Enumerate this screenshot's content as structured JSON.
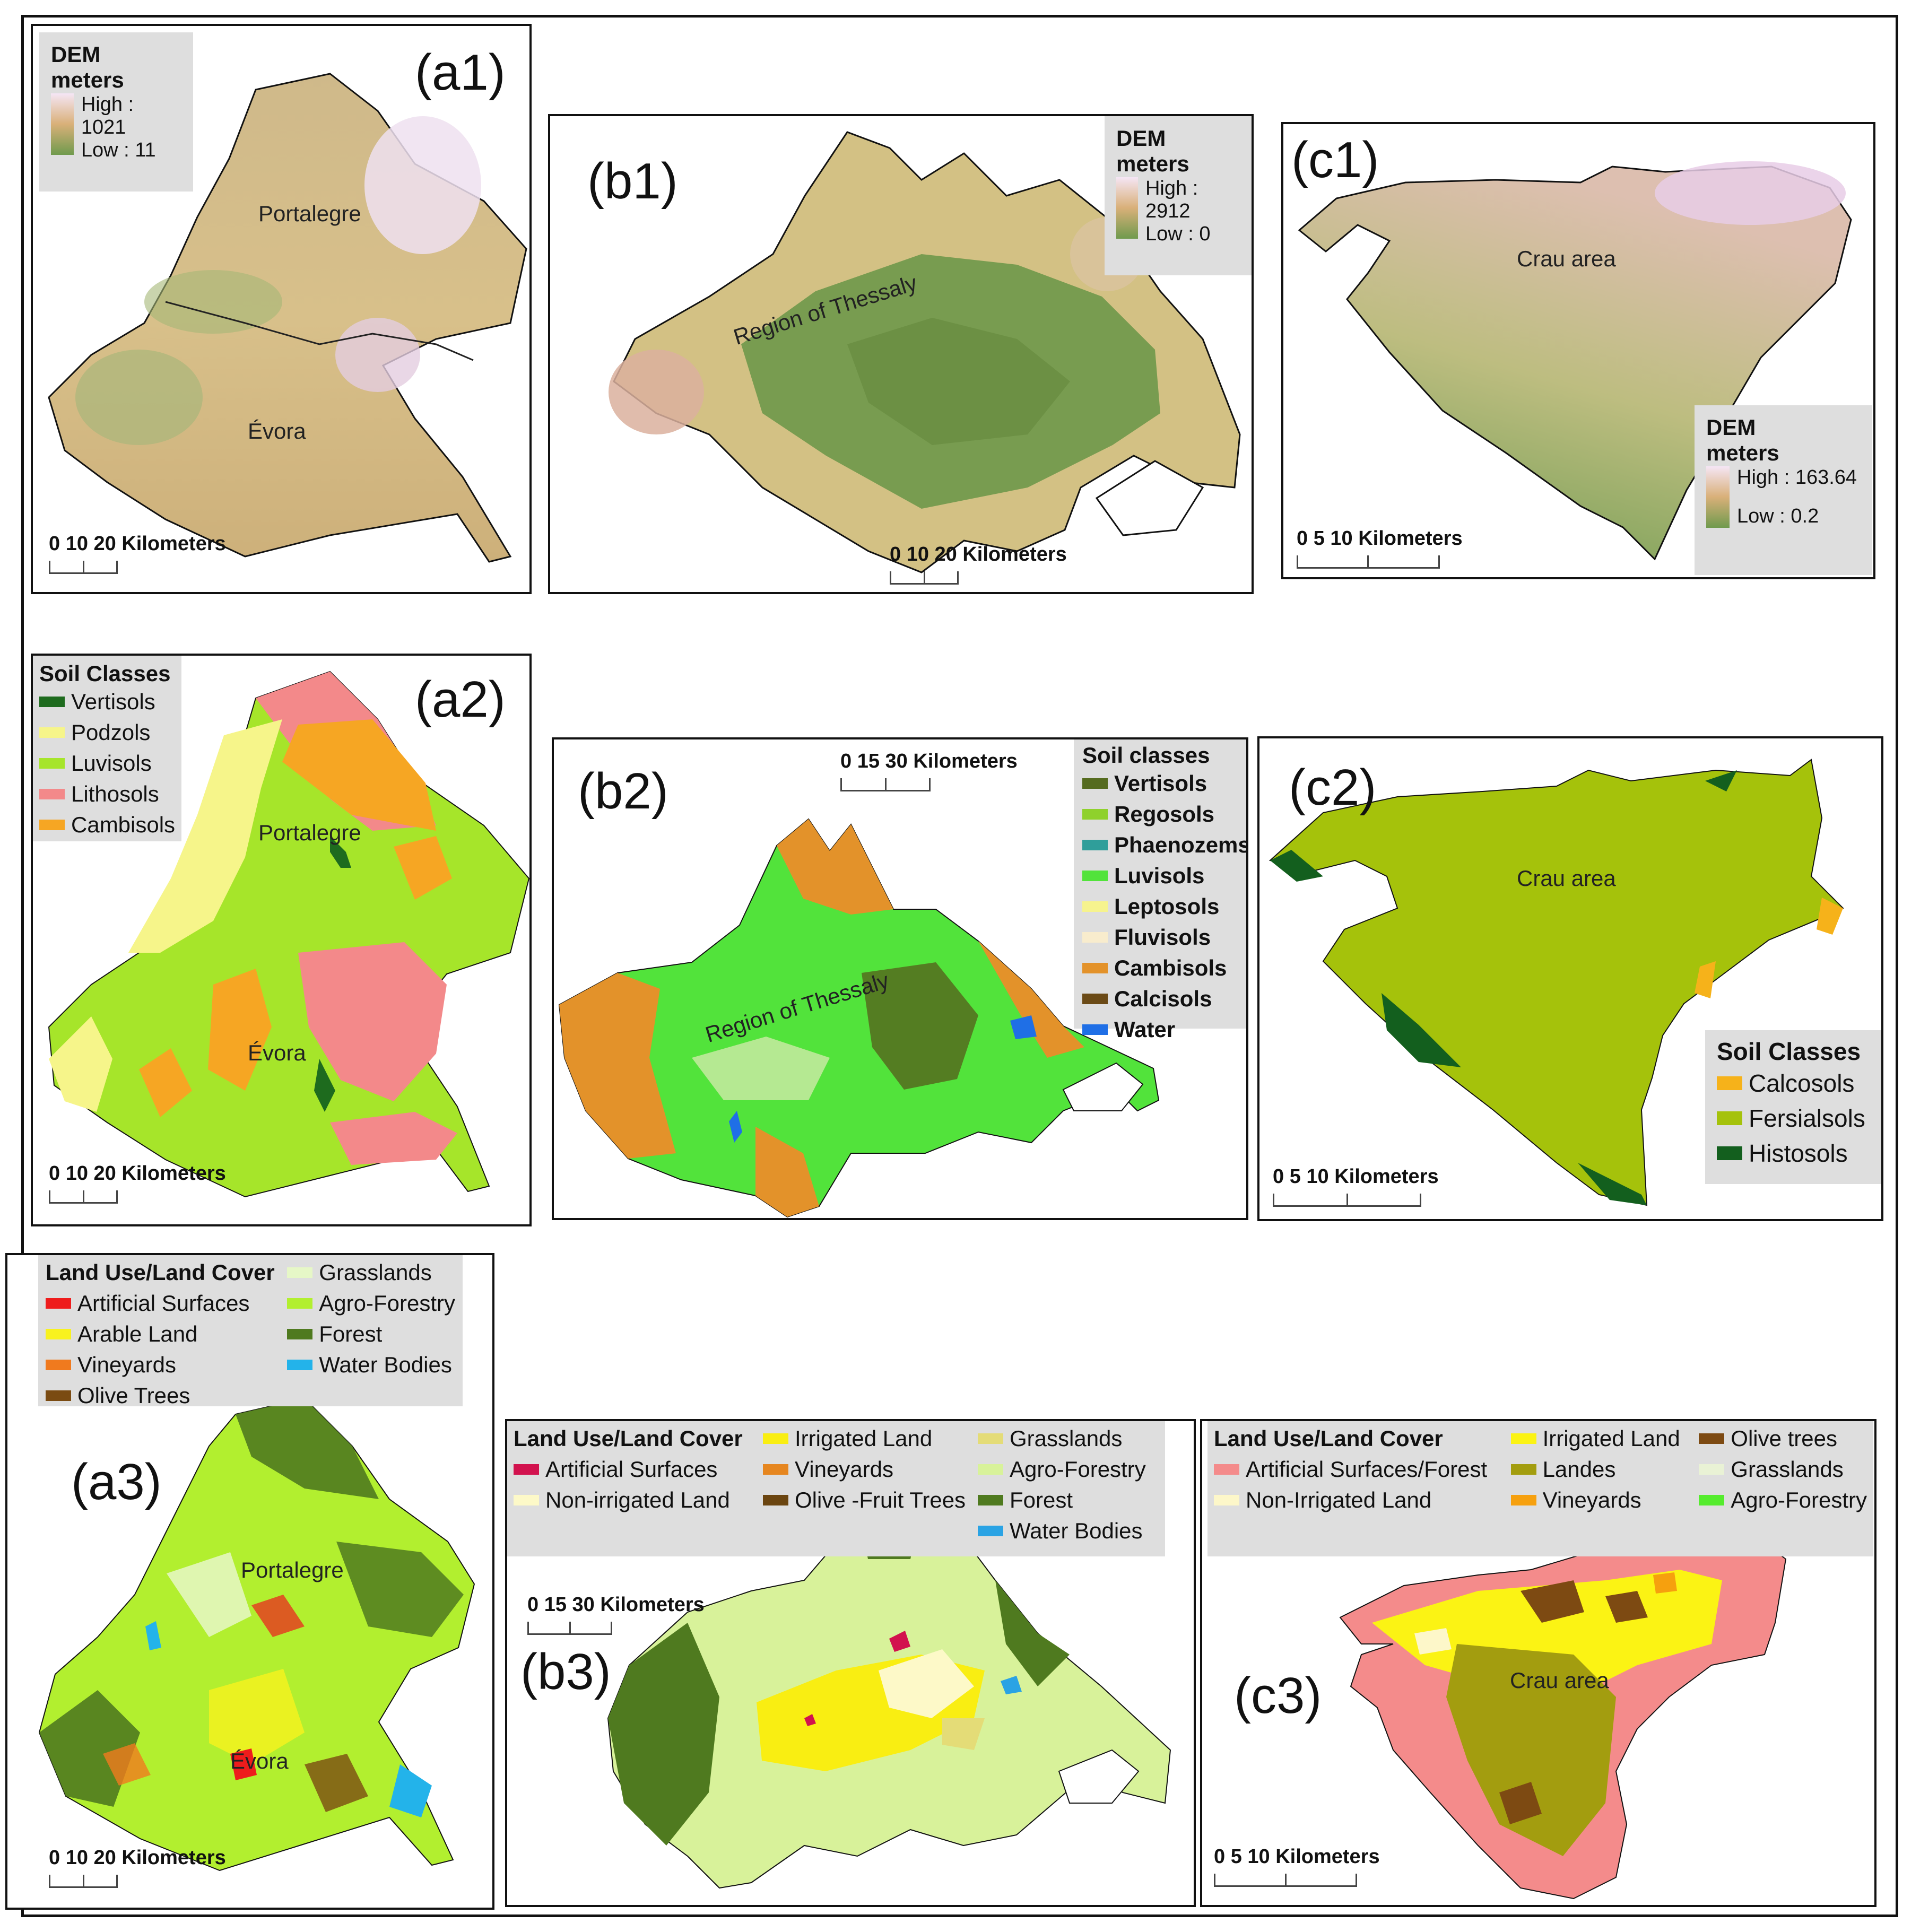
{
  "colors": {
    "dem_low": "#6f9a4d",
    "dem_mid": "#d9c38a",
    "dem_high": "#f5e6f5",
    "vertisols": "#1e6b1e",
    "podzols": "#f6f58a",
    "luvisols": "#a6e52a",
    "lithosols": "#f3898a",
    "cambisols": "#f6a623",
    "b_vertisols": "#556b1f",
    "b_regosols": "#8fd12c",
    "b_phaeozems": "#2f9e9a",
    "b_luvisols": "#52e33b",
    "b_leptosols": "#f6f38e",
    "b_fluvisols": "#f8eccd",
    "b_cambisols": "#e3922a",
    "b_calcisols": "#6b4a16",
    "b_water": "#1f6fe6",
    "calcosols": "#f6b21a",
    "fersialsols": "#a5c20b",
    "histosols": "#135f1e",
    "lc_artificial": "#ee1c1c",
    "lc_arable": "#f8f21e",
    "lc_vineyards": "#f07a1e",
    "lc_olive": "#7a4b12",
    "lc_grass": "#e6f7c7",
    "lc_agro": "#b2ef2f",
    "lc_forest": "#4f7a1f",
    "lc_water": "#23b3ea",
    "b3_artificial": "#d2124e",
    "b3_nonirr": "#fdf9c8",
    "b3_irrigated": "#f9ee12",
    "b3_vineyards": "#e6861f",
    "b3_olive": "#6b4510",
    "b3_grass": "#e4dc77",
    "b3_agro": "#d8f29a",
    "b3_forest": "#4f7a1f",
    "b3_water": "#2aa3e4",
    "c3_artificial": "#f48b8b",
    "c3_nonirr": "#fdf7c9",
    "c3_irrigated": "#fbf314",
    "c3_landes": "#a39d0f",
    "c3_vineyards": "#f6a00e",
    "c3_olive": "#7d4a12",
    "c3_grass": "#e9f2d5",
    "c3_agro": "#55ec2e"
  },
  "a1": {
    "label": "(a1)",
    "legend": {
      "title1": "DEM",
      "title2": "meters",
      "high": "High : 1021",
      "low": "Low : 11"
    },
    "places": [
      "Portalegre",
      "Évora"
    ],
    "scale": "0   10  20 Kilometers"
  },
  "b1": {
    "label": "(b1)",
    "legend": {
      "title1": "DEM",
      "title2": "meters",
      "high": "High : 2912",
      "low": "Low : 0"
    },
    "places": [
      "Region of Thessaly"
    ],
    "scale": "0   10  20 Kilometers"
  },
  "c1": {
    "label": "(c1)",
    "legend": {
      "title1": "DEM",
      "title2": "meters",
      "high": "High : 163.64",
      "low": "Low : 0.2"
    },
    "places": [
      "Crau area"
    ],
    "scale": "0         5         10 Kilometers"
  },
  "a2": {
    "label": "(a2)",
    "legend": {
      "title": "Soil Classes",
      "items": [
        "Vertisols",
        "Podzols",
        "Luvisols",
        "Lithosols",
        "Cambisols"
      ]
    },
    "places": [
      "Portalegre",
      "Évora"
    ],
    "scale": "0   10  20 Kilometers"
  },
  "b2": {
    "label": "(b2)",
    "legend": {
      "title": "Soil classes",
      "items": [
        "Vertisols",
        "Regosols",
        "Phaenozems",
        "Luvisols",
        "Leptosols",
        "Fluvisols",
        "Cambisols",
        "Calcisols",
        "Water"
      ]
    },
    "places": [
      "Region of Thessaly"
    ],
    "scale": "0    15    30 Kilometers"
  },
  "c2": {
    "label": "(c2)",
    "legend": {
      "title": "Soil Classes",
      "items": [
        "Calcosols",
        "Fersialsols",
        "Histosols"
      ]
    },
    "places": [
      "Crau area"
    ],
    "scale": "0         5         10 Kilometers"
  },
  "a3": {
    "label": "(a3)",
    "legend": {
      "title": "Land Use/Land Cover",
      "col1": [
        "Artificial Surfaces",
        "Arable Land",
        "Vineyards",
        "Olive Trees"
      ],
      "col2": [
        "Grasslands",
        "Agro-Forestry",
        "Forest",
        "Water Bodies"
      ]
    },
    "places": [
      "Portalegre",
      "Évora"
    ],
    "scale": "0   10  20 Kilometers"
  },
  "b3": {
    "label": "(b3)",
    "legend": {
      "title": "Land Use/Land Cover",
      "col1": [
        "Artificial Surfaces",
        "Non-irrigated Land"
      ],
      "col2": [
        "Irrigated Land",
        "Vineyards",
        "Olive -Fruit Trees"
      ],
      "col3": [
        "Grasslands",
        "Agro-Forestry",
        "Forest",
        "Water Bodies"
      ]
    },
    "scale": "0    15   30 Kilometers"
  },
  "c3": {
    "label": "(c3)",
    "legend": {
      "title": "Land Use/Land Cover",
      "col1": [
        "Artificial Surfaces/Forest",
        "Non-Irrigated Land"
      ],
      "col2": [
        "Irrigated Land",
        "Landes",
        "Vineyards",
        "Agro-Forestry"
      ],
      "col3": [
        "Olive trees",
        "Grasslands"
      ]
    },
    "places": [
      "Crau area"
    ],
    "scale": "0         5         10 Kilometers"
  }
}
